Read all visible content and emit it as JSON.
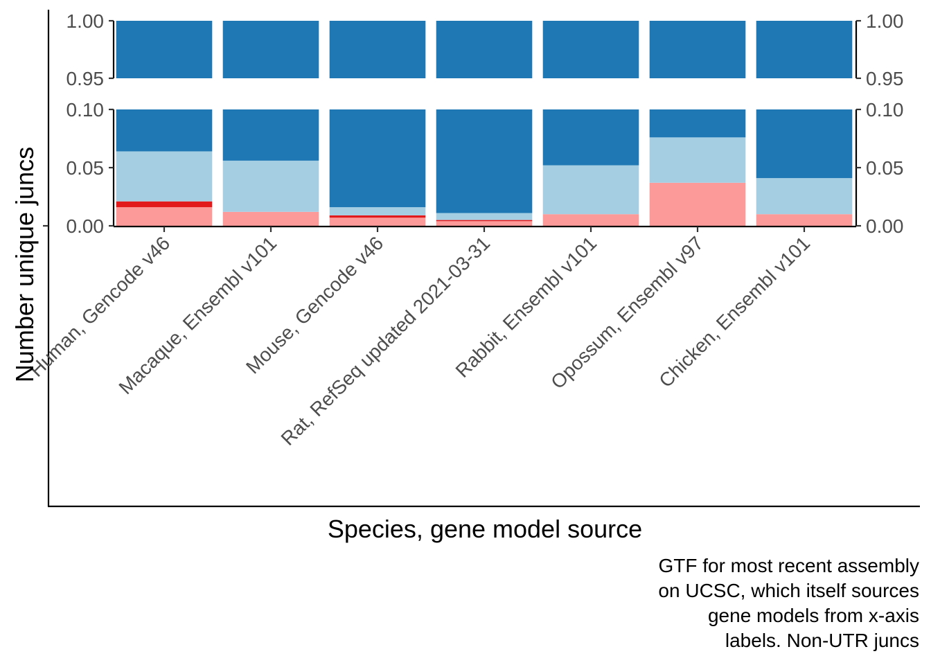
{
  "chart_data": {
    "type": "bar",
    "stacked": true,
    "ylabel": "Number unique juncs",
    "xlabel": "Species, gene model source",
    "caption": [
      "GTF for most recent assembly",
      "on UCSC, which itself sources",
      "gene models from x-axis",
      "labels. Non-UTR juncs"
    ],
    "categories": [
      "Human, Gencode v46",
      "Macaque, Ensembl v101",
      "Mouse, Gencode v46",
      "Rat, RefSeq updated 2021-03-31",
      "Rabbit, Ensembl v101",
      "Opossum, Ensembl v97",
      "Chicken, Ensembl v101"
    ],
    "series": [
      {
        "color": "#fb9a99",
        "values": [
          0.016,
          0.012,
          0.007,
          0.004,
          0.01,
          0.037,
          0.01
        ]
      },
      {
        "color": "#e31a1c",
        "values": [
          0.005,
          0.0,
          0.002,
          0.001,
          0.0,
          0.0,
          0.0
        ]
      },
      {
        "color": "#a6cee3",
        "values": [
          0.043,
          0.044,
          0.007,
          0.006,
          0.042,
          0.039,
          0.031
        ]
      },
      {
        "color": "#1f78b4",
        "values": [
          0.936,
          0.944,
          0.984,
          0.989,
          0.948,
          0.924,
          0.959
        ]
      }
    ],
    "y_panels": [
      {
        "ylim": [
          0.95,
          1.0
        ],
        "ticks": [
          "0.95",
          "1.00"
        ]
      },
      {
        "ylim": [
          0.0,
          0.1
        ],
        "ticks": [
          "0.00",
          "0.05",
          "0.10"
        ]
      }
    ],
    "grid": false,
    "secondary_y_axis": true
  }
}
